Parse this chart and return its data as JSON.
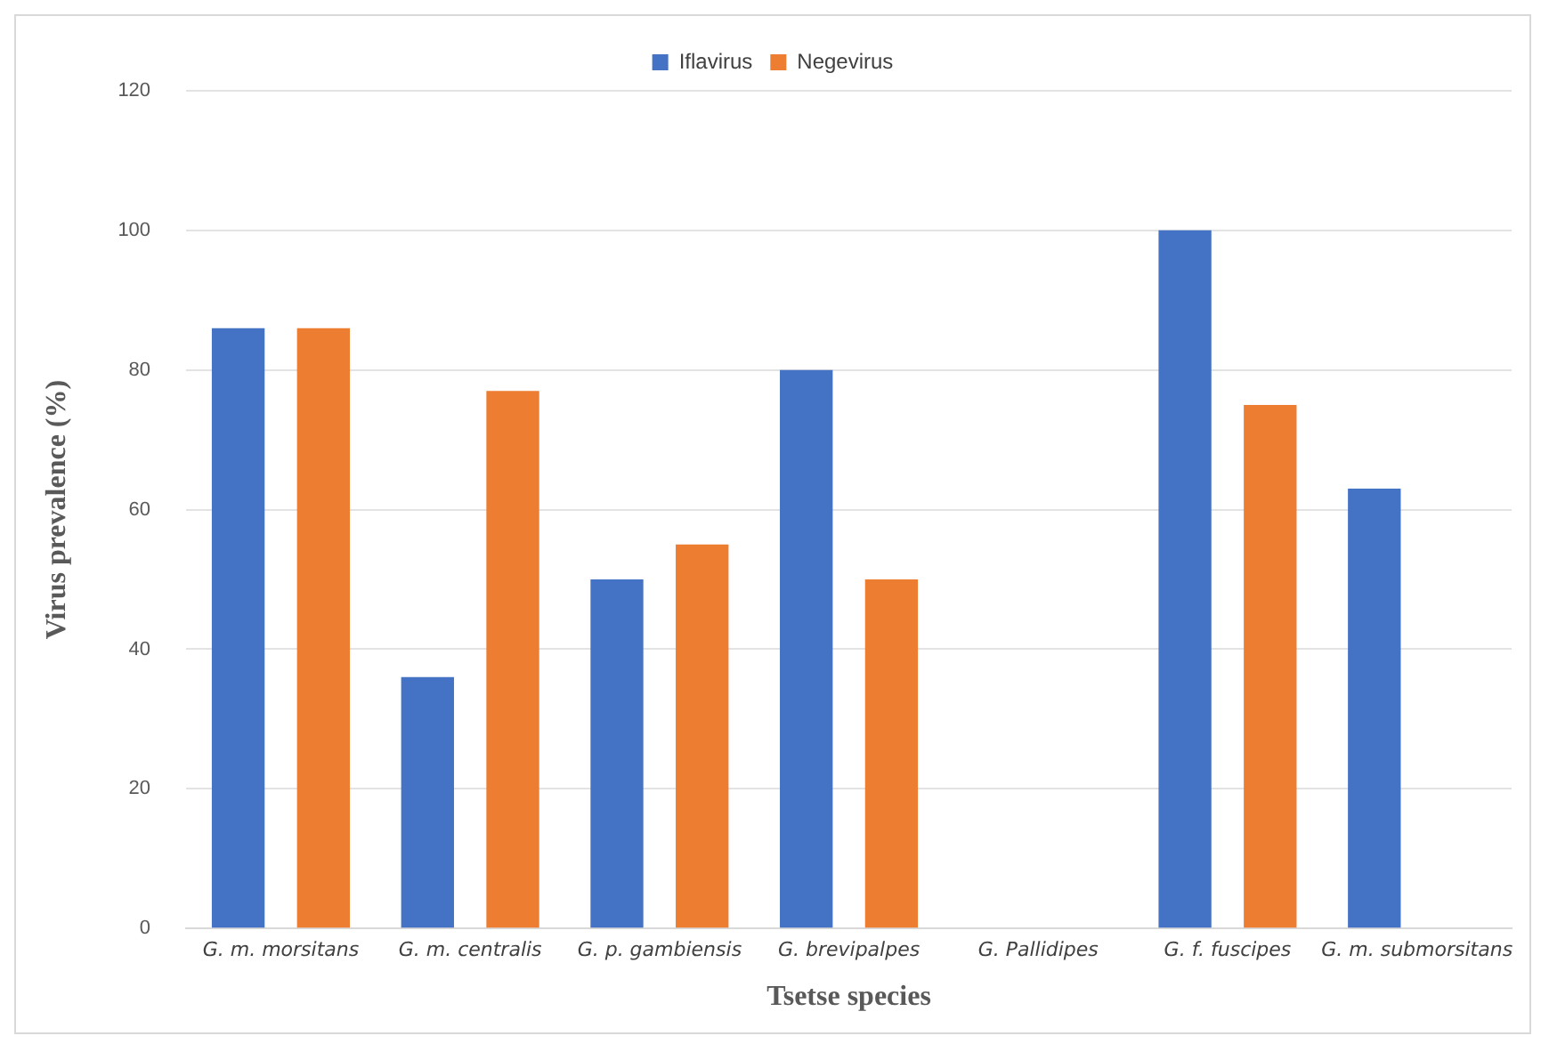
{
  "chart_data": {
    "type": "bar",
    "xlabel": "Tsetse species",
    "ylabel": "Virus prevalence (%)",
    "categories": [
      "G. m. morsitans",
      "G. m. centralis",
      "G. p. gambiensis",
      "G. brevipalpes",
      "G. Pallidipes",
      "G. f. fuscipes",
      "G. m. submorsitans"
    ],
    "series": [
      {
        "name": "Iflavirus",
        "color": "#4472c4",
        "values": [
          86,
          36,
          50,
          80,
          0,
          100,
          63
        ]
      },
      {
        "name": "Negevirus",
        "color": "#ed7d31",
        "values": [
          86,
          77,
          55,
          50,
          0,
          75,
          0
        ]
      }
    ],
    "ylim": [
      0,
      120
    ],
    "yticks": [
      0,
      20,
      40,
      60,
      80,
      100,
      120
    ],
    "grid": "y",
    "legend": "top"
  }
}
